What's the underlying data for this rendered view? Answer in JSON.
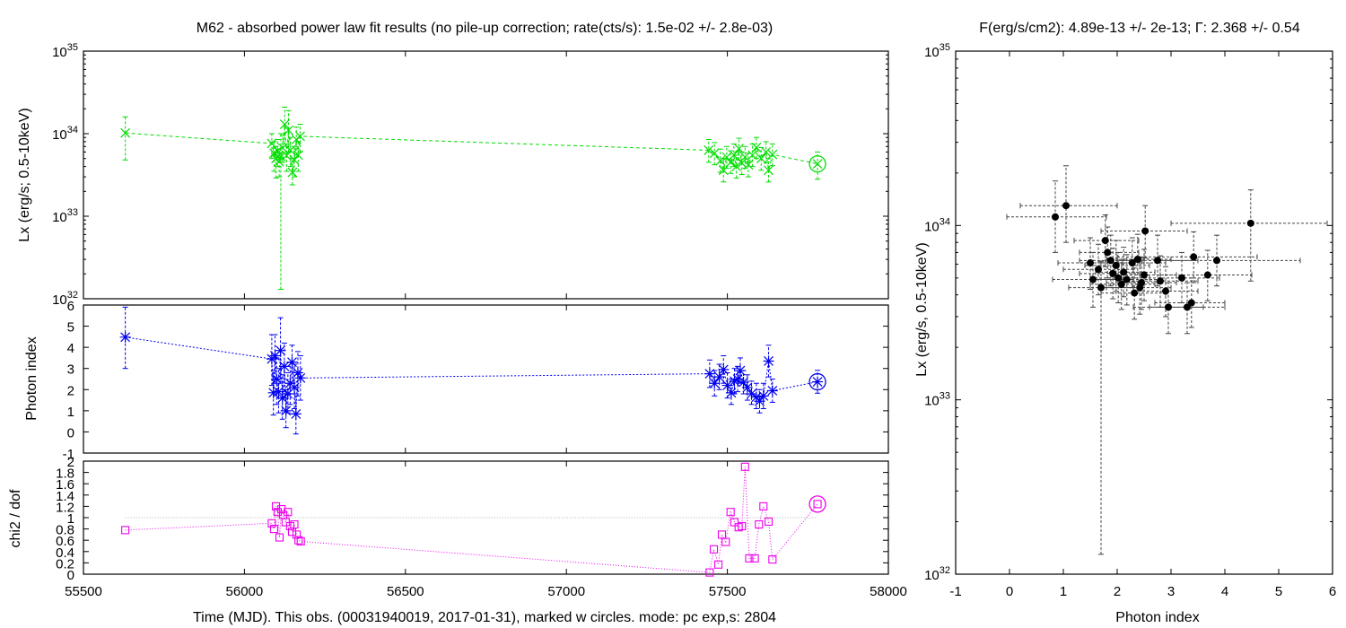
{
  "titles": {
    "main": "M62  - absorbed power law fit results (no pile-up correction; rate(cts/s): 1.5e-02 +/- 2.8e-03)",
    "right": "F(erg/s/cm2): 4.89e-13 +/- 2e-13; Γ: 2.368 +/- 0.54"
  },
  "axes": {
    "time_xlabel": "Time (MJD). This obs. (00031940019, 2017-01-31), marked w circles. mode: pc exp,s: 2804",
    "lx_ylabel": "Lx (erg/s; 0.5-10keV)",
    "index_ylabel": "Photon index",
    "chi_ylabel": "chi2 / dof",
    "right_xlabel": "Photon index",
    "right_ylabel": "Lx (erg/s, 0.5-10keV)"
  },
  "colors": {
    "lx": "#00dd00",
    "index": "#0000ee",
    "chi": "#ee00ee",
    "scatter": "#000000",
    "reference": "#aaaaaa"
  },
  "chart_data": [
    {
      "type": "line",
      "panel": "lx",
      "log_y": true,
      "xlim": [
        55500,
        58000
      ],
      "ylim": [
        1e+32,
        1e+35
      ],
      "x_ticks": [
        55500,
        56000,
        56500,
        57000,
        57500,
        58000
      ],
      "y_ticks": [
        {
          "value": 1e+32,
          "mant": "10",
          "exp": "32"
        },
        {
          "value": 1e+33,
          "mant": "10",
          "exp": "33"
        },
        {
          "value": 1e+34,
          "mant": "10",
          "exp": "34"
        },
        {
          "value": 1e+35,
          "mant": "10",
          "exp": "35"
        }
      ],
      "points": [
        {
          "x": 55630,
          "y": 1.02e+34,
          "lo": 4.8e+33,
          "hi": 1.6e+34
        },
        {
          "x": 56085,
          "y": 7.6e+33,
          "lo": 5e+33,
          "hi": 1e+34
        },
        {
          "x": 56092,
          "y": 5.8e+33,
          "lo": 3.5e+33,
          "hi": 8e+33
        },
        {
          "x": 56098,
          "y": 5e+33,
          "lo": 2.9e+33,
          "hi": 7e+33
        },
        {
          "x": 56103,
          "y": 6.2e+33,
          "lo": 4e+33,
          "hi": 8.5e+33
        },
        {
          "x": 56108,
          "y": 4.6e+33,
          "lo": 3e+33,
          "hi": 6.5e+33
        },
        {
          "x": 56113,
          "y": 5.3e+33,
          "lo": 1.3e+32,
          "hi": 1e+34
        },
        {
          "x": 56119,
          "y": 6.7e+33,
          "lo": 4.5e+33,
          "hi": 9.5e+33
        },
        {
          "x": 56125,
          "y": 1.3e+34,
          "lo": 7.5e+33,
          "hi": 2.1e+34
        },
        {
          "x": 56131,
          "y": 5.4e+33,
          "lo": 3.5e+33,
          "hi": 7.5e+33
        },
        {
          "x": 56137,
          "y": 1.1e+34,
          "lo": 6e+33,
          "hi": 1.9e+34
        },
        {
          "x": 56143,
          "y": 6.3e+33,
          "lo": 4e+33,
          "hi": 9e+33
        },
        {
          "x": 56149,
          "y": 3.4e+33,
          "lo": 2.4e+33,
          "hi": 5e+33
        },
        {
          "x": 56155,
          "y": 4.8e+33,
          "lo": 3e+33,
          "hi": 7e+33
        },
        {
          "x": 56161,
          "y": 8.5e+33,
          "lo": 5.5e+33,
          "hi": 1.2e+34
        },
        {
          "x": 56167,
          "y": 5.5e+33,
          "lo": 3.5e+33,
          "hi": 8e+33
        },
        {
          "x": 56173,
          "y": 9.3e+33,
          "lo": 6e+33,
          "hi": 1.3e+34
        },
        {
          "x": 57442,
          "y": 6.3e+33,
          "lo": 4.5e+33,
          "hi": 8.5e+33
        },
        {
          "x": 57460,
          "y": 5.8e+33,
          "lo": 4.2e+33,
          "hi": 7.8e+33
        },
        {
          "x": 57478,
          "y": 4.7e+33,
          "lo": 3.4e+33,
          "hi": 6.5e+33
        },
        {
          "x": 57488,
          "y": 3.6e+33,
          "lo": 2.6e+33,
          "hi": 5e+33
        },
        {
          "x": 57498,
          "y": 5.2e+33,
          "lo": 3.8e+33,
          "hi": 7e+33
        },
        {
          "x": 57510,
          "y": 4.5e+33,
          "lo": 3.3e+33,
          "hi": 6.2e+33
        },
        {
          "x": 57520,
          "y": 5.5e+33,
          "lo": 4e+33,
          "hi": 7.5e+33
        },
        {
          "x": 57528,
          "y": 4e+33,
          "lo": 2.9e+33,
          "hi": 5.5e+33
        },
        {
          "x": 57536,
          "y": 6.6e+33,
          "lo": 4.8e+33,
          "hi": 8.8e+33
        },
        {
          "x": 57545,
          "y": 4.4e+33,
          "lo": 3.2e+33,
          "hi": 6e+33
        },
        {
          "x": 57555,
          "y": 5.2e+33,
          "lo": 3.8e+33,
          "hi": 7e+33
        },
        {
          "x": 57565,
          "y": 4.2e+33,
          "lo": 3e+33,
          "hi": 5.8e+33
        },
        {
          "x": 57578,
          "y": 5.5e+33,
          "lo": 4e+33,
          "hi": 7.5e+33
        },
        {
          "x": 57590,
          "y": 6.8e+33,
          "lo": 5e+33,
          "hi": 9e+33
        },
        {
          "x": 57605,
          "y": 5e+33,
          "lo": 3.6e+33,
          "hi": 6.8e+33
        },
        {
          "x": 57620,
          "y": 6e+33,
          "lo": 4.4e+33,
          "hi": 8e+33
        },
        {
          "x": 57628,
          "y": 3.6e+33,
          "lo": 2.6e+33,
          "hi": 5e+33
        },
        {
          "x": 57640,
          "y": 5.6e+33,
          "lo": 4.1e+33,
          "hi": 7.5e+33
        }
      ],
      "current": {
        "x": 57780,
        "y": 4.3e+33,
        "lo": 2.8e+33,
        "hi": 6e+33
      }
    },
    {
      "type": "line",
      "panel": "index",
      "xlim": [
        55500,
        58000
      ],
      "ylim": [
        -1,
        6
      ],
      "y_ticks": [
        -1,
        0,
        1,
        2,
        3,
        4,
        5,
        6
      ],
      "points": [
        {
          "x": 55630,
          "y": 4.48,
          "lo": 3.0,
          "hi": 5.9
        },
        {
          "x": 56085,
          "y": 3.45,
          "lo": 2.2,
          "hi": 4.6
        },
        {
          "x": 56090,
          "y": 1.85,
          "lo": 0.8,
          "hi": 2.9
        },
        {
          "x": 56095,
          "y": 3.6,
          "lo": 2.3,
          "hi": 4.6
        },
        {
          "x": 56100,
          "y": 2.5,
          "lo": 1.3,
          "hi": 3.5
        },
        {
          "x": 56106,
          "y": 1.9,
          "lo": 0.9,
          "hi": 3.0
        },
        {
          "x": 56112,
          "y": 3.85,
          "lo": 2.3,
          "hi": 5.4
        },
        {
          "x": 56118,
          "y": 1.6,
          "lo": 0.6,
          "hi": 2.7
        },
        {
          "x": 56124,
          "y": 3.1,
          "lo": 1.9,
          "hi": 4.2
        },
        {
          "x": 56129,
          "y": 1.0,
          "lo": 0.2,
          "hi": 2.0
        },
        {
          "x": 56135,
          "y": 1.8,
          "lo": 0.9,
          "hi": 2.8
        },
        {
          "x": 56142,
          "y": 2.3,
          "lo": 1.3,
          "hi": 3.3
        },
        {
          "x": 56148,
          "y": 3.3,
          "lo": 2.3,
          "hi": 4.1
        },
        {
          "x": 56155,
          "y": 2.1,
          "lo": 1.1,
          "hi": 3.2
        },
        {
          "x": 56160,
          "y": 0.85,
          "lo": -0.1,
          "hi": 1.8
        },
        {
          "x": 56166,
          "y": 2.8,
          "lo": 1.7,
          "hi": 3.8
        },
        {
          "x": 56174,
          "y": 2.55,
          "lo": 1.5,
          "hi": 3.6
        },
        {
          "x": 57445,
          "y": 2.75,
          "lo": 2.1,
          "hi": 3.4
        },
        {
          "x": 57460,
          "y": 2.3,
          "lo": 1.7,
          "hi": 2.9
        },
        {
          "x": 57475,
          "y": 2.6,
          "lo": 2.0,
          "hi": 3.2
        },
        {
          "x": 57488,
          "y": 2.95,
          "lo": 2.3,
          "hi": 3.6
        },
        {
          "x": 57500,
          "y": 2.2,
          "lo": 1.6,
          "hi": 2.8
        },
        {
          "x": 57512,
          "y": 1.85,
          "lo": 1.3,
          "hi": 2.5
        },
        {
          "x": 57522,
          "y": 2.4,
          "lo": 1.8,
          "hi": 3.0
        },
        {
          "x": 57532,
          "y": 2.5,
          "lo": 1.9,
          "hi": 3.1
        },
        {
          "x": 57540,
          "y": 2.9,
          "lo": 2.3,
          "hi": 3.5
        },
        {
          "x": 57550,
          "y": 2.35,
          "lo": 1.8,
          "hi": 2.9
        },
        {
          "x": 57562,
          "y": 2.1,
          "lo": 1.5,
          "hi": 2.7
        },
        {
          "x": 57575,
          "y": 1.8,
          "lo": 1.3,
          "hi": 2.4
        },
        {
          "x": 57590,
          "y": 1.65,
          "lo": 1.1,
          "hi": 2.3
        },
        {
          "x": 57600,
          "y": 1.45,
          "lo": 0.9,
          "hi": 2.0
        },
        {
          "x": 57612,
          "y": 1.7,
          "lo": 1.1,
          "hi": 2.3
        },
        {
          "x": 57628,
          "y": 3.35,
          "lo": 2.6,
          "hi": 4.1
        },
        {
          "x": 57640,
          "y": 1.95,
          "lo": 1.4,
          "hi": 2.5
        }
      ],
      "current": {
        "x": 57780,
        "y": 2.37,
        "lo": 1.83,
        "hi": 2.91
      }
    },
    {
      "type": "line",
      "panel": "chi",
      "xlim": [
        55500,
        58000
      ],
      "ylim": [
        0,
        2
      ],
      "y_ticks": [
        0,
        0.2,
        0.4,
        0.6,
        0.8,
        1,
        1.2,
        1.4,
        1.6,
        1.8,
        2
      ],
      "reference_y": 1,
      "points": [
        {
          "x": 55630,
          "y": 0.78
        },
        {
          "x": 56085,
          "y": 0.9
        },
        {
          "x": 56092,
          "y": 0.8
        },
        {
          "x": 56098,
          "y": 1.2
        },
        {
          "x": 56103,
          "y": 1.1
        },
        {
          "x": 56109,
          "y": 0.65
        },
        {
          "x": 56115,
          "y": 1.15
        },
        {
          "x": 56120,
          "y": 1.05
        },
        {
          "x": 56128,
          "y": 0.92
        },
        {
          "x": 56135,
          "y": 1.1
        },
        {
          "x": 56142,
          "y": 0.85
        },
        {
          "x": 56148,
          "y": 0.75
        },
        {
          "x": 56155,
          "y": 0.88
        },
        {
          "x": 56162,
          "y": 0.7
        },
        {
          "x": 56168,
          "y": 0.6
        },
        {
          "x": 56175,
          "y": 0.58
        },
        {
          "x": 57445,
          "y": 0.03
        },
        {
          "x": 57458,
          "y": 0.44
        },
        {
          "x": 57472,
          "y": 0.17
        },
        {
          "x": 57483,
          "y": 0.7
        },
        {
          "x": 57495,
          "y": 0.57
        },
        {
          "x": 57510,
          "y": 1.1
        },
        {
          "x": 57522,
          "y": 0.92
        },
        {
          "x": 57535,
          "y": 0.83
        },
        {
          "x": 57545,
          "y": 0.85
        },
        {
          "x": 57555,
          "y": 1.9
        },
        {
          "x": 57568,
          "y": 0.28
        },
        {
          "x": 57585,
          "y": 0.28
        },
        {
          "x": 57598,
          "y": 0.88
        },
        {
          "x": 57612,
          "y": 1.2
        },
        {
          "x": 57628,
          "y": 0.93
        },
        {
          "x": 57640,
          "y": 0.26
        }
      ],
      "current": {
        "x": 57780,
        "y": 1.24
      }
    },
    {
      "type": "scatter",
      "panel": "right",
      "log_y": true,
      "xlim": [
        -1,
        6
      ],
      "ylim": [
        1e+32,
        1e+35
      ],
      "x_ticks": [
        -1,
        0,
        1,
        2,
        3,
        4,
        5,
        6
      ],
      "y_ticks": [
        {
          "value": 1e+32,
          "mant": "10",
          "exp": "32"
        },
        {
          "value": 1e+33,
          "mant": "10",
          "exp": "33"
        },
        {
          "value": 1e+34,
          "mant": "10",
          "exp": "34"
        },
        {
          "value": 1e+35,
          "mant": "10",
          "exp": "35"
        }
      ],
      "points": [
        {
          "x": 0.85,
          "y": 1.12e+34,
          "xlo": -0.05,
          "xhi": 1.8,
          "ylo": 7e+33,
          "yhi": 1.8e+34
        },
        {
          "x": 1.05,
          "y": 1.3e+34,
          "xlo": 0.2,
          "xhi": 2.0,
          "ylo": 8e+33,
          "yhi": 2.2e+34
        },
        {
          "x": 1.5,
          "y": 6.1e+33,
          "xlo": 0.9,
          "xhi": 2.1,
          "ylo": 4.3e+33,
          "yhi": 8.5e+33
        },
        {
          "x": 1.55,
          "y": 4.9e+33,
          "xlo": 0.8,
          "xhi": 2.3,
          "ylo": 3.4e+33,
          "yhi": 7e+33
        },
        {
          "x": 1.65,
          "y": 5.6e+33,
          "xlo": 1.0,
          "xhi": 2.3,
          "ylo": 4e+33,
          "yhi": 7.8e+33
        },
        {
          "x": 1.7,
          "y": 4.4e+33,
          "xlo": 1.1,
          "xhi": 2.3,
          "ylo": 1.3e+32,
          "yhi": 6.2e+33
        },
        {
          "x": 1.78,
          "y": 8.2e+33,
          "xlo": 1.2,
          "xhi": 2.4,
          "ylo": 5.8e+33,
          "yhi": 1.15e+34
        },
        {
          "x": 1.82,
          "y": 7e+33,
          "xlo": 1.3,
          "xhi": 2.4,
          "ylo": 5e+33,
          "yhi": 9.8e+33
        },
        {
          "x": 1.88,
          "y": 6.3e+33,
          "xlo": 1.3,
          "xhi": 2.5,
          "ylo": 4.5e+33,
          "yhi": 8.8e+33
        },
        {
          "x": 1.92,
          "y": 5.3e+33,
          "xlo": 1.3,
          "xhi": 2.5,
          "ylo": 3.8e+33,
          "yhi": 7.4e+33
        },
        {
          "x": 1.98,
          "y": 5.9e+33,
          "xlo": 1.4,
          "xhi": 2.6,
          "ylo": 4.2e+33,
          "yhi": 8.2e+33
        },
        {
          "x": 2.02,
          "y": 5e+33,
          "xlo": 1.5,
          "xhi": 2.6,
          "ylo": 3.6e+33,
          "yhi": 7e+33
        },
        {
          "x": 2.08,
          "y": 4.6e+33,
          "xlo": 1.5,
          "xhi": 2.7,
          "ylo": 3.3e+33,
          "yhi": 6.4e+33
        },
        {
          "x": 2.12,
          "y": 5.4e+33,
          "xlo": 1.6,
          "xhi": 2.7,
          "ylo": 3.9e+33,
          "yhi": 7.5e+33
        },
        {
          "x": 2.18,
          "y": 4.9e+33,
          "xlo": 1.6,
          "xhi": 2.8,
          "ylo": 3.5e+33,
          "yhi": 6.8e+33
        },
        {
          "x": 2.28,
          "y": 6.1e+33,
          "xlo": 1.7,
          "xhi": 2.9,
          "ylo": 4.4e+33,
          "yhi": 8.5e+33
        },
        {
          "x": 2.32,
          "y": 4.1e+33,
          "xlo": 1.7,
          "xhi": 2.9,
          "ylo": 2.9e+33,
          "yhi": 5.7e+33
        },
        {
          "x": 2.38,
          "y": 6.4e+33,
          "xlo": 1.8,
          "xhi": 3.0,
          "ylo": 4.6e+33,
          "yhi": 8.9e+33
        },
        {
          "x": 2.42,
          "y": 4.4e+33,
          "xlo": 1.8,
          "xhi": 3.0,
          "ylo": 3.1e+33,
          "yhi": 6.2e+33
        },
        {
          "x": 2.45,
          "y": 4.7e+33,
          "xlo": 1.8,
          "xhi": 3.1,
          "ylo": 3.3e+33,
          "yhi": 6.6e+33
        },
        {
          "x": 2.52,
          "y": 9.3e+33,
          "xlo": 1.7,
          "xhi": 3.3,
          "ylo": 6.5e+33,
          "yhi": 1.3e+34
        },
        {
          "x": 2.5,
          "y": 5.2e+33,
          "xlo": 1.9,
          "xhi": 3.1,
          "ylo": 3.7e+33,
          "yhi": 7.3e+33
        },
        {
          "x": 2.75,
          "y": 6.3e+33,
          "xlo": 2.0,
          "xhi": 3.5,
          "ylo": 4.5e+33,
          "yhi": 8.8e+33
        },
        {
          "x": 2.8,
          "y": 4.8e+33,
          "xlo": 2.1,
          "xhi": 3.5,
          "ylo": 3.4e+33,
          "yhi": 6.7e+33
        },
        {
          "x": 2.95,
          "y": 3.4e+33,
          "xlo": 2.3,
          "xhi": 3.6,
          "ylo": 2.4e+33,
          "yhi": 4.7e+33
        },
        {
          "x": 2.9,
          "y": 4.2e+33,
          "xlo": 2.3,
          "xhi": 3.5,
          "ylo": 3e+33,
          "yhi": 5.8e+33
        },
        {
          "x": 3.2,
          "y": 5e+33,
          "xlo": 2.5,
          "xhi": 3.9,
          "ylo": 3.6e+33,
          "yhi": 7e+33
        },
        {
          "x": 3.3,
          "y": 3.4e+33,
          "xlo": 2.6,
          "xhi": 4.0,
          "ylo": 2.4e+33,
          "yhi": 4.7e+33
        },
        {
          "x": 3.38,
          "y": 3.6e+33,
          "xlo": 2.7,
          "xhi": 4.0,
          "ylo": 2.6e+33,
          "yhi": 5e+33
        },
        {
          "x": 3.42,
          "y": 6.6e+33,
          "xlo": 2.0,
          "xhi": 4.6,
          "ylo": 4.7e+33,
          "yhi": 9.2e+33
        },
        {
          "x": 3.68,
          "y": 5.2e+33,
          "xlo": 2.8,
          "xhi": 4.5,
          "ylo": 3.7e+33,
          "yhi": 7.2e+33
        },
        {
          "x": 3.85,
          "y": 6.3e+33,
          "xlo": 2.7,
          "xhi": 5.4,
          "ylo": 4.5e+33,
          "yhi": 8.8e+33
        },
        {
          "x": 4.48,
          "y": 1.03e+34,
          "xlo": 3.0,
          "xhi": 5.9,
          "ylo": 4.8e+33,
          "yhi": 1.6e+34
        }
      ]
    }
  ]
}
